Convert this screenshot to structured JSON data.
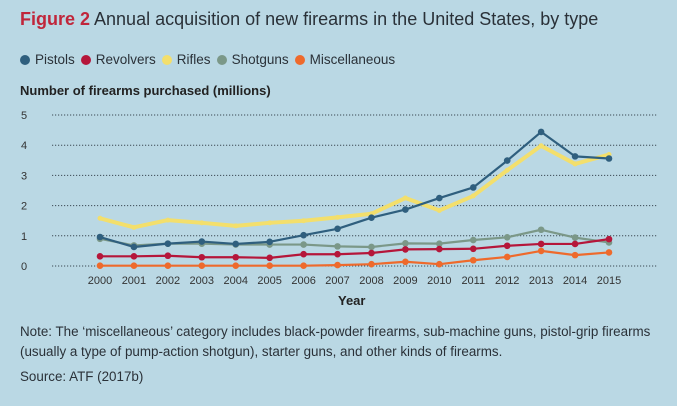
{
  "title": {
    "figure": "Figure 2",
    "text": "Annual acquisition of new firearms in the United States, by type"
  },
  "note": "Note: The ‘miscellaneous’ category includes black-powder firearms, sub-machine guns, pistol-grip firearms (usually a type of pump-action shotgun), starter guns, and other kinds of firearms.",
  "source": "Source: ATF (2017b)",
  "chart_data": {
    "type": "line",
    "title": "Annual acquisition of new firearms in the United States, by type",
    "xlabel": "Year",
    "ylabel": "Number of firearms purchased (millions)",
    "ylim": [
      0,
      5
    ],
    "yticks": [
      "0",
      "1",
      "2",
      "3",
      "4",
      "5"
    ],
    "grid": true,
    "legend_position": "top-left",
    "x": [
      "2000",
      "2001",
      "2002",
      "2003",
      "2004",
      "2005",
      "2006",
      "2007",
      "2008",
      "2009",
      "2010",
      "2011",
      "2012",
      "2013",
      "2014",
      "2015"
    ],
    "series": [
      {
        "name": "Pistols",
        "color": "#2f5f7e",
        "values": [
          0.96,
          0.63,
          0.74,
          0.81,
          0.73,
          0.8,
          1.02,
          1.23,
          1.6,
          1.87,
          2.25,
          2.6,
          3.49,
          4.44,
          3.63,
          3.56
        ]
      },
      {
        "name": "Revolvers",
        "color": "#b5163a",
        "values": [
          0.32,
          0.32,
          0.34,
          0.29,
          0.29,
          0.27,
          0.39,
          0.39,
          0.43,
          0.55,
          0.56,
          0.57,
          0.67,
          0.73,
          0.73,
          0.89
        ]
      },
      {
        "name": "Rifles",
        "color": "#f3df6c",
        "values": [
          1.58,
          1.28,
          1.52,
          1.43,
          1.33,
          1.43,
          1.5,
          1.61,
          1.73,
          2.25,
          1.84,
          2.32,
          3.17,
          3.98,
          3.38,
          3.69
        ]
      },
      {
        "name": "Shotguns",
        "color": "#7b9888",
        "values": [
          0.9,
          0.68,
          0.74,
          0.74,
          0.71,
          0.71,
          0.71,
          0.65,
          0.63,
          0.75,
          0.74,
          0.86,
          0.95,
          1.2,
          0.94,
          0.78
        ]
      },
      {
        "name": "Miscellaneous",
        "color": "#ee6a2c",
        "values": [
          0.01,
          0.01,
          0.01,
          0.01,
          0.01,
          0.01,
          0.01,
          0.03,
          0.06,
          0.14,
          0.06,
          0.19,
          0.3,
          0.5,
          0.36,
          0.45
        ]
      }
    ]
  }
}
